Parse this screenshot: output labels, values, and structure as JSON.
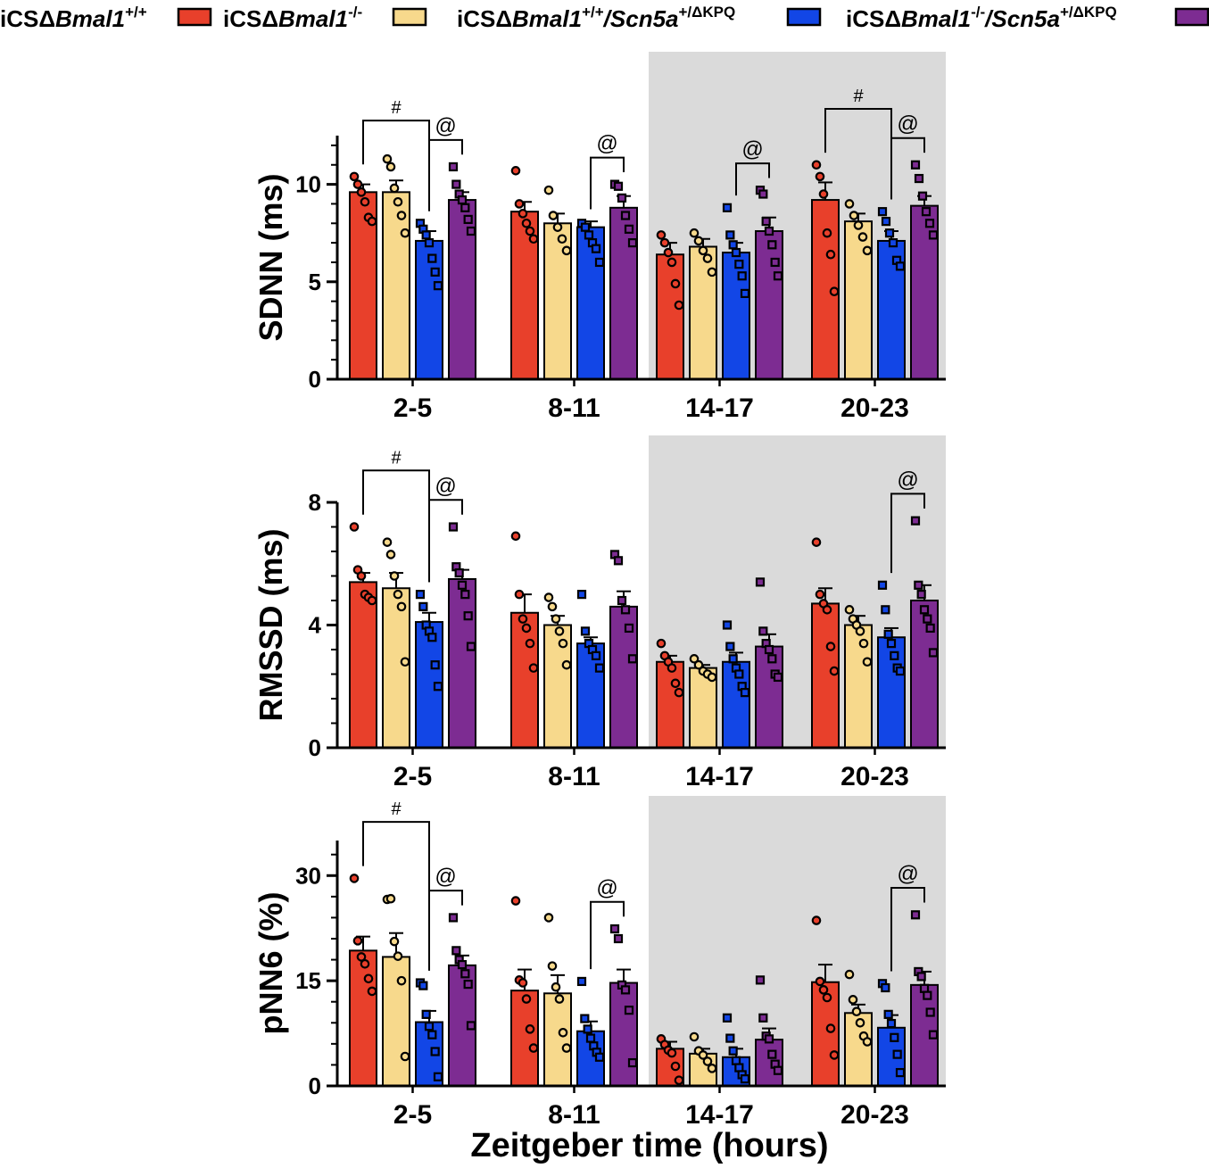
{
  "legend": {
    "items": [
      {
        "prefix": "iCSΔ",
        "gene": "Bmal1",
        "sup": "+/+",
        "rest": "",
        "rest_sup": "",
        "color": "#E8402B",
        "key": "wt"
      },
      {
        "prefix": "iCSΔ",
        "gene": "Bmal1",
        "sup": "-/-",
        "rest": "",
        "rest_sup": "",
        "color": "#F7D98C",
        "key": "ko"
      },
      {
        "prefix": "iCSΔ",
        "gene": "Bmal1",
        "sup": "+/+",
        "rest": "Scn5a",
        "rest_sup": "+/ΔKPQ",
        "color": "#1246E6",
        "key": "wt_kpq"
      },
      {
        "prefix": "iCSΔ",
        "gene": "Bmal1",
        "sup": "-/-",
        "rest": "Scn5a",
        "rest_sup": "+/ΔKPQ",
        "color": "#7D2C92",
        "key": "ko_kpq"
      }
    ]
  },
  "colors": {
    "wt": "#E8402B",
    "ko": "#F7D98C",
    "wt_kpq": "#1246E6",
    "ko_kpq": "#7D2C92",
    "dark_shade": "#DADADA"
  },
  "chart_data": [
    {
      "type": "bar",
      "ylabel": "SDNN (ms)",
      "xlabel": "",
      "ylim": [
        0,
        12.5
      ],
      "yticks": [
        0,
        5,
        10
      ],
      "categories": [
        "2-5",
        "8-11",
        "14-17",
        "20-23"
      ],
      "shaded_categories": [
        "14-17",
        "20-23"
      ],
      "series": [
        {
          "name": "iCSΔBmal1+/+",
          "values": [
            9.6,
            8.6,
            6.4,
            9.2
          ],
          "sem": [
            0.4,
            0.5,
            0.6,
            0.9
          ],
          "points": [
            [
              10.4,
              10.0,
              9.6,
              9.1,
              8.3,
              8.1
            ],
            [
              10.7,
              9.0,
              8.5,
              8.0,
              7.6,
              7.2
            ],
            [
              7.4,
              7.0,
              6.5,
              6.0,
              4.9,
              3.8
            ],
            [
              11.0,
              10.4,
              9.5,
              7.5,
              6.4,
              4.5
            ]
          ]
        },
        {
          "name": "iCSΔBmal1-/-",
          "values": [
            9.6,
            8.0,
            6.8,
            8.1
          ],
          "sem": [
            0.6,
            0.5,
            0.4,
            0.4
          ],
          "points": [
            [
              11.3,
              10.9,
              9.8,
              9.1,
              8.4,
              7.5
            ],
            [
              9.7,
              8.4,
              7.8,
              7.2,
              6.6
            ],
            [
              7.5,
              7.1,
              6.6,
              6.2,
              5.5
            ],
            [
              9.0,
              8.4,
              7.9,
              7.3,
              6.6
            ]
          ]
        },
        {
          "name": "iCSΔBmal1+/+/Scn5a+/ΔKPQ",
          "values": [
            7.1,
            7.8,
            6.5,
            7.1
          ],
          "sem": [
            0.5,
            0.3,
            0.5,
            0.5
          ],
          "points": [
            [
              8.0,
              7.7,
              7.4,
              7.0,
              6.2,
              5.5,
              4.8
            ],
            [
              8.0,
              7.8,
              7.4,
              7.0,
              6.7,
              6.0
            ],
            [
              8.8,
              7.4,
              6.9,
              6.5,
              5.9,
              5.3,
              4.4
            ],
            [
              8.6,
              8.1,
              7.5,
              7.0,
              6.1,
              5.8
            ]
          ]
        },
        {
          "name": "iCSΔBmal1-/-/Scn5a+/ΔKPQ",
          "values": [
            9.2,
            8.8,
            7.6,
            8.9
          ],
          "sem": [
            0.4,
            0.6,
            0.7,
            0.5
          ],
          "points": [
            [
              10.9,
              10.0,
              9.5,
              9.2,
              8.8,
              8.2,
              7.6
            ],
            [
              10.0,
              9.9,
              9.3,
              8.4,
              7.7,
              7.0
            ],
            [
              9.7,
              9.5,
              8.1,
              7.6,
              6.9,
              6.0,
              5.3
            ],
            [
              11.0,
              10.3,
              9.4,
              8.6,
              8.0,
              7.4
            ]
          ]
        }
      ],
      "annotations": [
        {
          "symbol": "#",
          "from": "2-5:1",
          "to": "2-5:3"
        },
        {
          "symbol": "@",
          "from": "2-5:3",
          "to": "2-5:4"
        },
        {
          "symbol": "@",
          "from": "8-11:3",
          "to": "8-11:4"
        },
        {
          "symbol": "@",
          "from": "14-17:3",
          "to": "14-17:4"
        },
        {
          "symbol": "#",
          "from": "20-23:1",
          "to": "20-23:3"
        },
        {
          "symbol": "@",
          "from": "20-23:3",
          "to": "20-23:4"
        }
      ]
    },
    {
      "type": "bar",
      "ylabel": "RMSSD (ms)",
      "xlabel": "",
      "ylim": [
        0,
        8
      ],
      "yticks": [
        0,
        4,
        8
      ],
      "categories": [
        "2-5",
        "8-11",
        "14-17",
        "20-23"
      ],
      "shaded_categories": [
        "14-17",
        "20-23"
      ],
      "series": [
        {
          "name": "iCSΔBmal1+/+",
          "values": [
            5.4,
            4.4,
            2.8,
            4.7
          ],
          "sem": [
            0.3,
            0.6,
            0.2,
            0.5
          ],
          "points": [
            [
              7.2,
              5.8,
              5.6,
              5.0,
              4.9,
              4.8
            ],
            [
              6.9,
              5.0,
              4.2,
              3.9,
              3.4,
              2.6
            ],
            [
              3.4,
              3.0,
              2.8,
              2.6,
              2.1,
              1.8
            ],
            [
              6.7,
              5.0,
              4.7,
              4.5,
              3.3,
              2.5
            ]
          ]
        },
        {
          "name": "iCSΔBmal1-/-",
          "values": [
            5.2,
            4.0,
            2.6,
            4.0
          ],
          "sem": [
            0.5,
            0.3,
            0.1,
            0.3
          ],
          "points": [
            [
              6.7,
              6.3,
              5.6,
              5.0,
              4.6,
              2.8
            ],
            [
              4.9,
              4.6,
              4.2,
              3.8,
              3.4,
              2.7
            ],
            [
              2.9,
              2.7,
              2.5,
              2.4,
              2.3
            ],
            [
              4.5,
              4.2,
              4.0,
              3.8,
              3.4,
              2.8
            ]
          ]
        },
        {
          "name": "iCSΔBmal1+/+/Scn5a+/ΔKPQ",
          "values": [
            4.1,
            3.4,
            2.8,
            3.6
          ],
          "sem": [
            0.3,
            0.2,
            0.3,
            0.3
          ],
          "points": [
            [
              5.0,
              4.6,
              4.0,
              3.8,
              3.6,
              2.7,
              2.0
            ],
            [
              5.0,
              3.8,
              3.4,
              3.2,
              3.0,
              2.6
            ],
            [
              4.0,
              3.3,
              2.9,
              2.6,
              2.4,
              2.0,
              1.8
            ],
            [
              5.3,
              4.5,
              3.7,
              3.4,
              3.0,
              2.6,
              2.5
            ]
          ]
        },
        {
          "name": "iCSΔBmal1-/-/Scn5a+/ΔKPQ",
          "values": [
            5.5,
            4.6,
            3.3,
            4.8
          ],
          "sem": [
            0.3,
            0.5,
            0.4,
            0.5
          ],
          "points": [
            [
              7.2,
              5.9,
              5.7,
              5.3,
              5.0,
              4.3,
              3.3
            ],
            [
              6.3,
              6.1,
              4.8,
              4.5,
              3.9,
              2.9
            ],
            [
              5.4,
              3.8,
              3.4,
              3.2,
              2.9,
              2.4,
              2.3
            ],
            [
              7.4,
              5.3,
              5.0,
              4.5,
              4.2,
              3.9,
              3.1
            ]
          ]
        }
      ],
      "annotations": [
        {
          "symbol": "#",
          "from": "2-5:1",
          "to": "2-5:3"
        },
        {
          "symbol": "@",
          "from": "2-5:3",
          "to": "2-5:4"
        },
        {
          "symbol": "@",
          "from": "20-23:3",
          "to": "20-23:4"
        }
      ]
    },
    {
      "type": "bar",
      "ylabel": "pNN6 (%)",
      "xlabel": "Zeitgeber time (hours)",
      "ylim": [
        0,
        35
      ],
      "yticks": [
        0,
        15,
        30
      ],
      "categories": [
        "2-5",
        "8-11",
        "14-17",
        "20-23"
      ],
      "shaded_categories": [
        "14-17",
        "20-23"
      ],
      "series": [
        {
          "name": "iCSΔBmal1+/+",
          "values": [
            19.3,
            13.6,
            5.3,
            14.8
          ],
          "sem": [
            2.0,
            3.0,
            1.0,
            2.5
          ],
          "points": [
            [
              29.6,
              20.7,
              18.4,
              17.4,
              15.3,
              13.5
            ],
            [
              26.4,
              15.1,
              14.7,
              12.4,
              8.1,
              5.4
            ],
            [
              6.7,
              5.9,
              5.1,
              4.7,
              2.8,
              0.8
            ],
            [
              23.6,
              14.9,
              13.7,
              12.6,
              8.2,
              4.4
            ]
          ]
        },
        {
          "name": "iCSΔBmal1-/-",
          "values": [
            18.4,
            13.2,
            4.6,
            10.4
          ],
          "sem": [
            3.4,
            2.6,
            0.7,
            1.2
          ],
          "points": [
            [
              26.6,
              26.7,
              20.6,
              18.5,
              15.0,
              4.2
            ],
            [
              24.0,
              17.1,
              14.1,
              12.4,
              7.6,
              5.4
            ],
            [
              7.0,
              5.0,
              4.4,
              3.5,
              2.5
            ],
            [
              15.9,
              12.3,
              10.6,
              9.0,
              7.1,
              6.3
            ]
          ]
        },
        {
          "name": "iCSΔBmal1+/+/Scn5a+/ΔKPQ",
          "values": [
            9.1,
            7.8,
            4.1,
            8.3
          ],
          "sem": [
            1.6,
            1.4,
            1.2,
            1.8
          ],
          "points": [
            [
              14.7,
              14.3,
              10.2,
              8.5,
              7.3,
              4.9,
              1.3
            ],
            [
              14.9,
              9.6,
              8.1,
              6.8,
              5.7,
              4.8,
              4.1
            ],
            [
              9.7,
              6.8,
              5.0,
              3.6,
              2.6,
              1.6,
              1.0
            ],
            [
              14.6,
              14.0,
              10.2,
              8.9,
              6.9,
              4.5,
              1.9
            ]
          ]
        },
        {
          "name": "iCSΔBmal1-/-/Scn5a+/ΔKPQ",
          "values": [
            17.2,
            14.7,
            6.6,
            14.4
          ],
          "sem": [
            1.4,
            1.9,
            1.6,
            1.9
          ],
          "points": [
            [
              24.0,
              19.3,
              18.0,
              17.3,
              16.0,
              14.5,
              8.6
            ],
            [
              22.4,
              21.0,
              14.4,
              13.7,
              10.8,
              3.3
            ],
            [
              15.1,
              9.7,
              7.1,
              6.7,
              4.5,
              3.1,
              2.2
            ],
            [
              24.4,
              16.3,
              15.6,
              13.9,
              12.9,
              10.5,
              7.3
            ]
          ]
        }
      ],
      "annotations": [
        {
          "symbol": "#",
          "from": "2-5:1",
          "to": "2-5:3"
        },
        {
          "symbol": "@",
          "from": "2-5:3",
          "to": "2-5:4"
        },
        {
          "symbol": "@",
          "from": "8-11:3",
          "to": "8-11:4"
        },
        {
          "symbol": "@",
          "from": "20-23:3",
          "to": "20-23:4"
        }
      ]
    }
  ]
}
